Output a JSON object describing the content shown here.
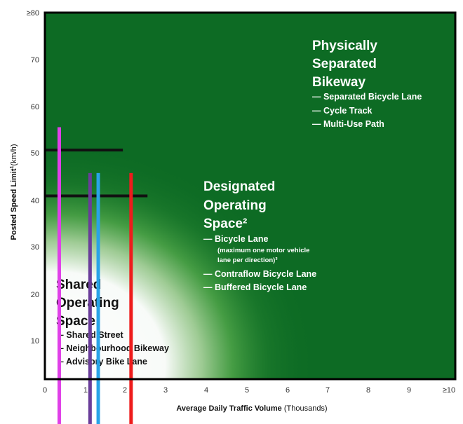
{
  "chart_data": {
    "type": "area",
    "title": "",
    "xlabel": "Average Daily Traffic Volume",
    "xlabel_unit": "(Thousands)",
    "ylabel": "Posted Speed Limit",
    "ylabel_sup": "1",
    "ylabel_unit": "(km/h)",
    "xlim": [
      0,
      10
    ],
    "ylim": [
      0,
      80
    ],
    "x_ticks": [
      "0",
      "1",
      "2",
      "3",
      "4",
      "5",
      "6",
      "7",
      "8",
      "9",
      "≥10"
    ],
    "y_ticks": [
      "10",
      "20",
      "30",
      "40",
      "50",
      "60",
      "70",
      "≥80"
    ],
    "colors": {
      "dark_green": "#0d6b24",
      "light_green": "#3d9a3a",
      "white": "#ffffff",
      "magenta": "#e040e8",
      "purple": "#6a3d9a",
      "cyan": "#29a3e8",
      "red": "#ee1c1c",
      "black": "#111111"
    },
    "zones": [
      {
        "name": "Physically Separated Bikeway",
        "title_lines": [
          "Physically",
          "Separated",
          "Bikeway"
        ],
        "items": [
          "— Separated Bicycle Lane",
          "— Cycle Track",
          "— Multi-Use Path"
        ]
      },
      {
        "name": "Designated Operating Space",
        "title_lines": [
          "Designated",
          "Operating",
          "Space²"
        ],
        "items": [
          "— Bicycle Lane",
          "(maximum one motor vehicle",
          "lane per direction)³",
          "— Contraflow Bicycle Lane",
          "— Buffered Bicycle Lane"
        ]
      },
      {
        "name": "Shared Operating Space",
        "title_lines": [
          "Shared",
          "Operating",
          "Space"
        ],
        "items": [
          "– Shared Street",
          "– Neighbourhood Bikeway",
          "– Advisory Bike Lane"
        ]
      }
    ],
    "threshold_lines": [
      {
        "y": 50,
        "x_start": 0,
        "x_end": 1.9,
        "color": "#111111"
      },
      {
        "y": 40,
        "x_start": 0,
        "x_end": 2.5,
        "color": "#111111"
      }
    ],
    "vertical_lines": [
      {
        "x": 0.35,
        "y_top": 55,
        "color": "#e040e8"
      },
      {
        "x": 1.1,
        "y_top": 45,
        "color": "#6a3d9a"
      },
      {
        "x": 1.3,
        "y_top": 45,
        "color": "#29a3e8"
      },
      {
        "x": 2.1,
        "y_top": 45,
        "color": "#ee1c1c"
      }
    ]
  }
}
